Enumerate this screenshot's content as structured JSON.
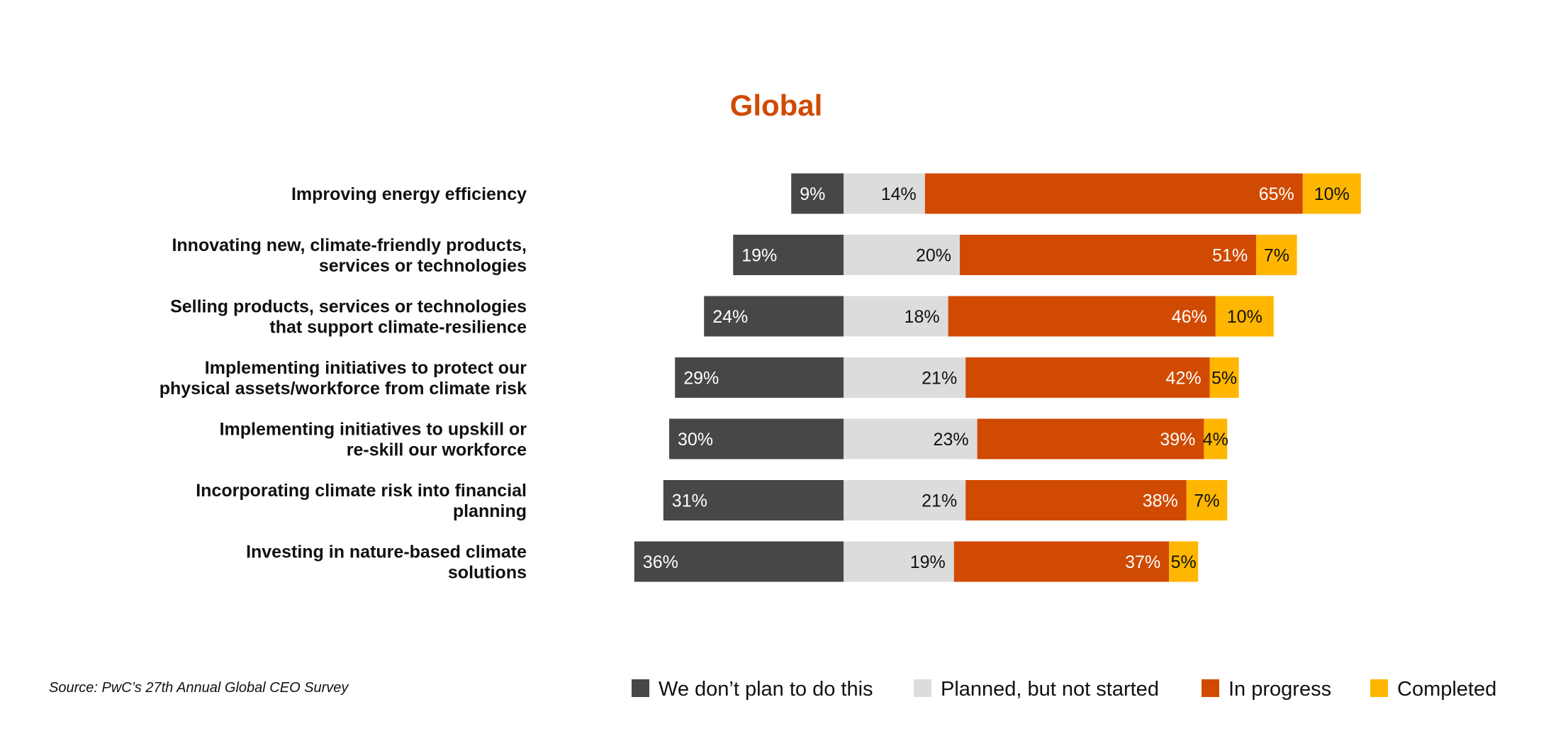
{
  "chart_data": {
    "type": "bar",
    "orientation": "horizontal",
    "stacked": true,
    "title": "Global",
    "categories": [
      [
        "Improving energy efficiency"
      ],
      [
        "Innovating new, climate-friendly products,",
        "services or technologies"
      ],
      [
        "Selling products, services or technologies",
        "that support climate-resilience"
      ],
      [
        "Implementing initiatives to protect our",
        "physical assets/workforce from climate risk"
      ],
      [
        "Implementing initiatives to upskill or",
        "re-skill our workforce"
      ],
      [
        "Incorporating climate risk into financial",
        "planning"
      ],
      [
        "Investing in nature-based climate",
        "solutions"
      ]
    ],
    "series": [
      {
        "name": "We don’t plan to do this",
        "color": "#474747",
        "label_color": "#ffffff",
        "values": [
          9,
          19,
          24,
          29,
          30,
          31,
          36
        ]
      },
      {
        "name": "Planned, but not started",
        "color": "#dcdcdc",
        "label_color": "#111111",
        "values": [
          14,
          20,
          18,
          21,
          23,
          21,
          19
        ]
      },
      {
        "name": "In progress",
        "color": "#d04a02",
        "label_color": "#ffffff",
        "values": [
          65,
          51,
          46,
          42,
          39,
          38,
          37
        ]
      },
      {
        "name": "Completed",
        "color": "#ffb600",
        "label_color": "#111111",
        "values": [
          10,
          7,
          10,
          5,
          4,
          7,
          5
        ]
      }
    ],
    "value_suffix": "%",
    "legend_position": "bottom-right",
    "grid": false
  },
  "colors": {
    "title": "#d04a02"
  },
  "source": "Source: PwC’s 27th Annual Global CEO Survey"
}
